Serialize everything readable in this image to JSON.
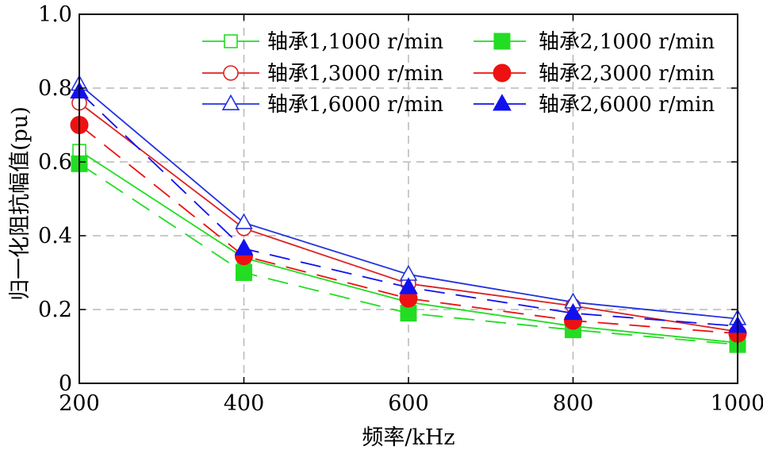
{
  "chart_data": {
    "type": "line",
    "title": "",
    "xlabel": "频率/kHz",
    "ylabel": "归一化阻抗幅值(pu)",
    "x": [
      200,
      400,
      600,
      800,
      1000
    ],
    "xlim": [
      200,
      1000
    ],
    "ylim": [
      0,
      1.0
    ],
    "xticks": [
      "200",
      "400",
      "600",
      "800",
      "1000"
    ],
    "yticks": [
      "0",
      "0.2",
      "0.4",
      "0.6",
      "0.8",
      "1.0"
    ],
    "grid": true,
    "legend_position": "top-right",
    "series": [
      {
        "name": "轴承1,1000 r/min",
        "color": "#22dd22",
        "marker": "square",
        "filled": false,
        "dash": false,
        "values": [
          0.63,
          0.34,
          0.22,
          0.155,
          0.11
        ]
      },
      {
        "name": "轴承2,1000 r/min",
        "color": "#22dd22",
        "marker": "square",
        "filled": true,
        "dash": true,
        "values": [
          0.595,
          0.3,
          0.19,
          0.145,
          0.105
        ]
      },
      {
        "name": "轴承1,3000 r/min",
        "color": "#dd2222",
        "marker": "circle",
        "filled": false,
        "dash": false,
        "values": [
          0.76,
          0.42,
          0.27,
          0.21,
          0.14
        ]
      },
      {
        "name": "轴承2,3000 r/min",
        "color": "#ee1111",
        "marker": "circle",
        "filled": true,
        "dash": true,
        "values": [
          0.7,
          0.345,
          0.23,
          0.17,
          0.135
        ]
      },
      {
        "name": "轴承1,6000 r/min",
        "color": "#2233dd",
        "marker": "triangle",
        "filled": false,
        "dash": false,
        "values": [
          0.81,
          0.435,
          0.295,
          0.22,
          0.175
        ]
      },
      {
        "name": "轴承2,6000 r/min",
        "color": "#1111ee",
        "marker": "triangle",
        "filled": true,
        "dash": true,
        "values": [
          0.79,
          0.365,
          0.26,
          0.19,
          0.155
        ]
      }
    ]
  }
}
